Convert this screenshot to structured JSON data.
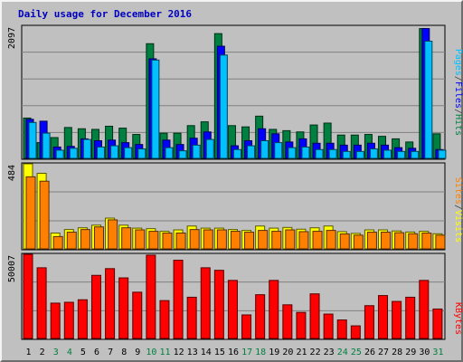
{
  "chart_data": [
    {
      "type": "bar",
      "title": "Daily usage for December 2016",
      "categories": [
        "1",
        "2",
        "3",
        "4",
        "5",
        "6",
        "7",
        "8",
        "9",
        "10",
        "11",
        "12",
        "13",
        "14",
        "15",
        "16",
        "17",
        "18",
        "19",
        "20",
        "21",
        "22",
        "23",
        "24",
        "25",
        "26",
        "27",
        "28",
        "29",
        "30",
        "31"
      ],
      "weekend_days": [
        "3",
        "4",
        "10",
        "11",
        "17",
        "18",
        "24",
        "25",
        "31"
      ],
      "ymax_label": "2097",
      "ylim": [
        0,
        2097
      ],
      "grid": true,
      "axis_label_parts": [
        "Pages",
        "/",
        "Files",
        "/",
        "Hits"
      ],
      "series": [
        {
          "name": "Hits",
          "color": "#008040",
          "values": [
            640,
            250,
            330,
            490,
            470,
            460,
            510,
            480,
            380,
            1820,
            400,
            400,
            520,
            580,
            1980,
            520,
            500,
            670,
            460,
            440,
            420,
            530,
            560,
            370,
            370,
            380,
            350,
            310,
            260,
            2060,
            390
          ]
        },
        {
          "name": "Files",
          "color": "#0000ff",
          "values": [
            620,
            590,
            180,
            190,
            310,
            280,
            290,
            250,
            220,
            1580,
            290,
            220,
            320,
            420,
            1780,
            200,
            280,
            470,
            390,
            260,
            310,
            240,
            240,
            210,
            210,
            240,
            210,
            170,
            160,
            2060,
            140
          ]
        },
        {
          "name": "Pages",
          "color": "#00c0ff",
          "values": [
            570,
            400,
            130,
            160,
            300,
            180,
            200,
            170,
            150,
            1560,
            170,
            120,
            210,
            300,
            1640,
            140,
            200,
            280,
            250,
            170,
            180,
            140,
            140,
            110,
            110,
            150,
            130,
            110,
            110,
            1860,
            130
          ]
        }
      ]
    },
    {
      "type": "bar",
      "ymax_label": "484",
      "ylim": [
        0,
        484
      ],
      "grid": true,
      "axis_label_parts": [
        "Sites",
        "/",
        "Visits"
      ],
      "series": [
        {
          "name": "Visits",
          "color": "#ffff00",
          "values": [
            484,
            430,
            90,
            110,
            120,
            135,
            175,
            135,
            118,
            115,
            100,
            108,
            130,
            118,
            118,
            110,
            105,
            130,
            118,
            122,
            112,
            120,
            130,
            98,
            88,
            108,
            108,
            102,
            96,
            100,
            86
          ]
        },
        {
          "name": "Sites",
          "color": "#ff8000",
          "values": [
            410,
            385,
            70,
            95,
            110,
            125,
            165,
            120,
            108,
            100,
            90,
            90,
            110,
            108,
            108,
            100,
            95,
            105,
            100,
            108,
            98,
            100,
            105,
            85,
            78,
            95,
            95,
            92,
            86,
            90,
            78
          ]
        }
      ]
    },
    {
      "type": "bar",
      "ymax_label": "50007",
      "ylim": [
        0,
        50007
      ],
      "grid": true,
      "axis_label_parts": [
        "KBytes"
      ],
      "series": [
        {
          "name": "KBytes",
          "color": "#ff0000",
          "values": [
            50007,
            42000,
            21000,
            21500,
            23000,
            37500,
            41500,
            36000,
            27500,
            49500,
            22500,
            46500,
            24500,
            42000,
            40500,
            34500,
            14000,
            26000,
            34500,
            20000,
            15500,
            26500,
            14500,
            11000,
            7500,
            19500,
            25500,
            22000,
            24500,
            34500,
            17500
          ]
        }
      ]
    }
  ],
  "colors": {
    "title": "#0000c0",
    "weekday_label": "#000000",
    "weekend_label": "#008040",
    "plot_bg": "#c0c0c0",
    "grid": "#808080"
  }
}
